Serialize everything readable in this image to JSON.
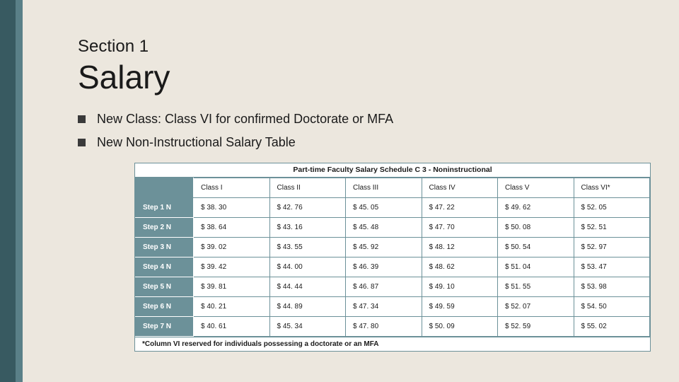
{
  "colors": {
    "page_bg": "#ece7de",
    "stripe_outer": "#5a8088",
    "stripe_inner": "#385a61",
    "table_border": "#6c9199",
    "row_head_bg": "#6c9199",
    "row_head_text": "#ffffff",
    "cell_bg": "#ffffff",
    "text": "#1a1a1a",
    "bullet": "#3a3a3a"
  },
  "typography": {
    "section_fontsize_pt": 18,
    "title_fontsize_pt": 34,
    "bullet_fontsize_pt": 14,
    "table_title_fontsize_pt": 8,
    "cell_fontsize_pt": 7.5
  },
  "section_label": "Section 1",
  "title": "Salary",
  "bullets": [
    "New Class: Class VI for confirmed Doctorate or MFA",
    "New Non-Instructional Salary Table"
  ],
  "table": {
    "type": "table",
    "title": "Part-time Faculty Salary Schedule C 3 - Noninstructional",
    "columns": [
      "Class I",
      "Class II",
      "Class III",
      "Class IV",
      "Class V",
      "Class VI*"
    ],
    "row_labels": [
      "Step 1 N",
      "Step 2 N",
      "Step 3 N",
      "Step 4 N",
      "Step 5 N",
      "Step 6 N",
      "Step 7 N"
    ],
    "rows": [
      [
        "$ 38. 30",
        "$ 42. 76",
        "$ 45. 05",
        "$ 47. 22",
        "$ 49. 62",
        "$ 52. 05"
      ],
      [
        "$ 38. 64",
        "$ 43. 16",
        "$ 45. 48",
        "$ 47. 70",
        "$ 50. 08",
        "$ 52. 51"
      ],
      [
        "$ 39. 02",
        "$ 43. 55",
        "$ 45. 92",
        "$ 48. 12",
        "$ 50. 54",
        "$ 52. 97"
      ],
      [
        "$ 39. 42",
        "$ 44. 00",
        "$ 46. 39",
        "$ 48. 62",
        "$ 51. 04",
        "$ 53. 47"
      ],
      [
        "$ 39. 81",
        "$ 44. 44",
        "$ 46. 87",
        "$ 49. 10",
        "$ 51. 55",
        "$ 53. 98"
      ],
      [
        "$ 40. 21",
        "$ 44. 89",
        "$ 47. 34",
        "$ 49. 59",
        "$ 52. 07",
        "$ 54. 50"
      ],
      [
        "$ 40. 61",
        "$ 45. 34",
        "$ 47. 80",
        "$ 50. 09",
        "$ 52. 59",
        "$ 55. 02"
      ]
    ],
    "footnote": "*Column VI reserved for individuals possessing a doctorate or an MFA"
  }
}
